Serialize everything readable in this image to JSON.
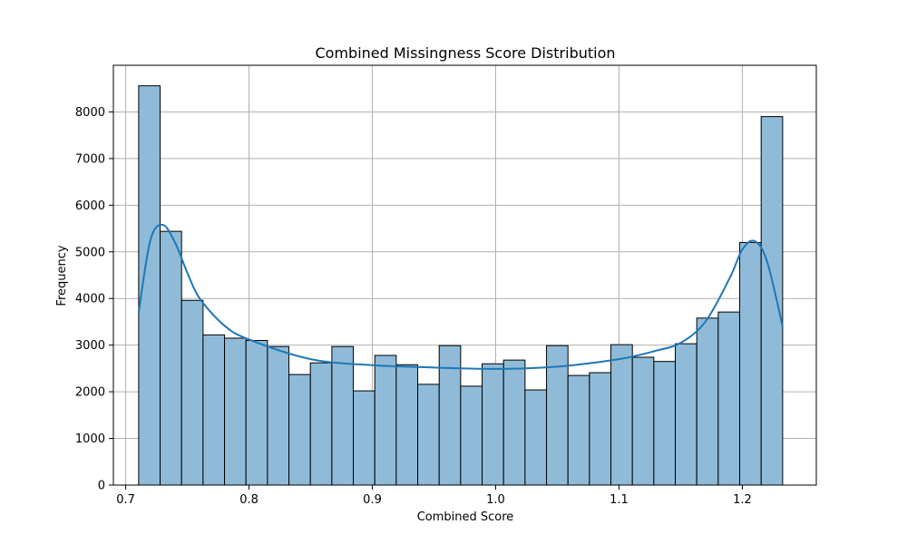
{
  "chart_data": {
    "type": "bar",
    "subtype": "histogram",
    "title": "Combined Missingness Score Distribution",
    "xlabel": "Combined Score",
    "ylabel": "Frequency",
    "xlim": [
      0.69,
      1.26
    ],
    "ylim": [
      0,
      9000
    ],
    "xticks": [
      0.7,
      0.8,
      0.9,
      1.0,
      1.1,
      1.2
    ],
    "xtick_labels": [
      "0.7",
      "0.8",
      "0.9",
      "1.0",
      "1.1",
      "1.2"
    ],
    "yticks": [
      0,
      1000,
      2000,
      3000,
      4000,
      5000,
      6000,
      7000,
      8000
    ],
    "ytick_labels": [
      "0",
      "1000",
      "2000",
      "3000",
      "4000",
      "5000",
      "6000",
      "7000",
      "8000"
    ],
    "grid": true,
    "bin_start": 0.7105,
    "bin_end": 1.2327,
    "counts": [
      8560,
      5440,
      3960,
      3220,
      3150,
      3100,
      2970,
      2370,
      2620,
      2970,
      2020,
      2780,
      2580,
      2160,
      2990,
      2120,
      2600,
      2680,
      2040,
      2990,
      2350,
      2410,
      3010,
      2740,
      2650,
      3030,
      3580,
      3710,
      5200,
      7900
    ],
    "kde": {
      "x": [
        0.7105,
        0.72,
        0.73,
        0.74,
        0.75,
        0.76,
        0.78,
        0.8,
        0.85,
        0.9,
        0.95,
        1.0,
        1.05,
        1.1,
        1.13,
        1.15,
        1.17,
        1.19,
        1.2,
        1.21,
        1.22,
        1.2327
      ],
      "y": [
        3700,
        5250,
        5580,
        5200,
        4550,
        4000,
        3420,
        3120,
        2700,
        2570,
        2520,
        2490,
        2540,
        2700,
        2880,
        3050,
        3500,
        4450,
        5050,
        5230,
        4800,
        3400
      ]
    },
    "colors": {
      "bar_fill": "#8fbbd9",
      "bar_edge": "#000000",
      "kde_line": "#1f77b4",
      "grid": "#b0b0b0"
    }
  }
}
